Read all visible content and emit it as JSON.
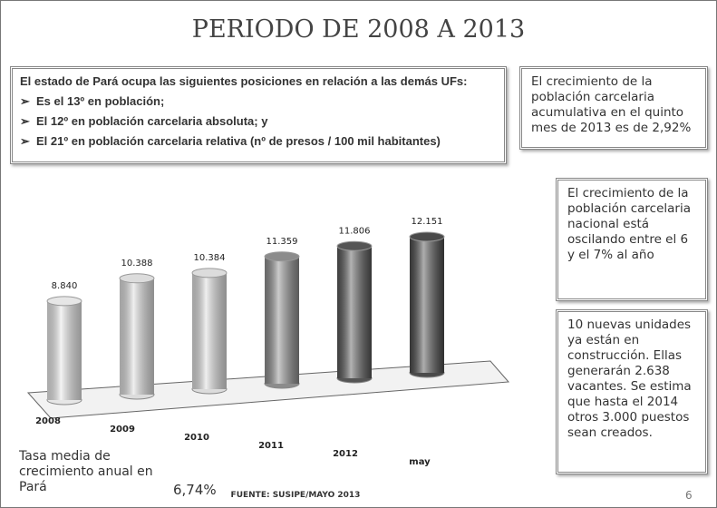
{
  "title": "PERIODO DE 2008 A 2013",
  "intro": {
    "heading": "El estado de Pará ocupa las siguientes posiciones  en relación a las demás UFs:",
    "items": [
      "Es el 13º en población;",
      "El 12º en población carcelaria absoluta; y",
      "El 21º en población carcelaria relativa (nº de presos   /   100 mil habitantes)"
    ]
  },
  "notes": [
    "El crecimiento de la población carcelaria acumulativa en el quinto mes de 2013 es de 2,92%",
    "El crecimiento de la población carcelaria nacional está oscilando entre el 6 y el 7% al año",
    "10 nuevas unidades ya están en construcción. Ellas generarán 2.638 vacantes. Se estima que hasta el 2014 otros 3.000 puestos sean creados."
  ],
  "summary": {
    "label": "Tasa media de crecimiento anual en Pará",
    "value": "6,74%"
  },
  "source": "FUENTE: SUSIPE/MAYO 2013",
  "page": "6",
  "chart_data": {
    "type": "bar",
    "categories": [
      "2008",
      "2009",
      "2010",
      "2011",
      "2012",
      "may"
    ],
    "values": [
      8840,
      10388,
      10384,
      11359,
      11806,
      12151
    ],
    "value_labels": [
      "8.840",
      "10.388",
      "10.384",
      "11.359",
      "11.806",
      "12.151"
    ],
    "colors": [
      "#e6e6e6",
      "#dcdcdc",
      "#dcdcdc",
      "#8c8c8c",
      "#555555",
      "#4a4a4a"
    ]
  }
}
